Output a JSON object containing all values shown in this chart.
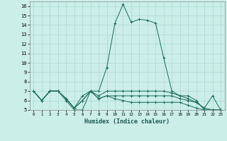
{
  "xlabel": "Humidex (Indice chaleur)",
  "background_color": "#cceee8",
  "grid_color": "#aad8d2",
  "line_color": "#1a6b5a",
  "x_data": [
    0,
    1,
    2,
    3,
    4,
    5,
    6,
    7,
    8,
    9,
    10,
    11,
    12,
    13,
    14,
    15,
    16,
    17,
    18,
    19,
    20,
    21,
    22,
    23
  ],
  "lines": [
    [
      7,
      6,
      7,
      7,
      6,
      5,
      5,
      7,
      7,
      9.5,
      14.2,
      16.2,
      14.3,
      14.6,
      14.5,
      14.2,
      10.5,
      7,
      6.5,
      6.5,
      6,
      5,
      5,
      5
    ],
    [
      7,
      6,
      7,
      7,
      6.2,
      5.2,
      6.5,
      7,
      6.5,
      7,
      7,
      7,
      7,
      7,
      7,
      7,
      7,
      6.8,
      6.5,
      6.2,
      5.8,
      5.2,
      5,
      5
    ],
    [
      7,
      6,
      7,
      7,
      6.2,
      5.2,
      6,
      7,
      6.2,
      6.5,
      6.5,
      6.5,
      6.5,
      6.5,
      6.5,
      6.5,
      6.5,
      6.5,
      6.2,
      6,
      5.8,
      5.2,
      6.5,
      5
    ],
    [
      7,
      6,
      7,
      7,
      6.2,
      5.2,
      6,
      7,
      6.2,
      6.5,
      6.2,
      6,
      5.8,
      5.8,
      5.8,
      5.8,
      5.8,
      5.8,
      5.8,
      5.5,
      5.2,
      5,
      5,
      5
    ]
  ],
  "ylim": [
    5,
    16.5
  ],
  "yticks": [
    5,
    6,
    7,
    8,
    9,
    10,
    11,
    12,
    13,
    14,
    15,
    16
  ],
  "xlim": [
    -0.5,
    23.5
  ],
  "xticks": [
    0,
    1,
    2,
    3,
    4,
    5,
    6,
    7,
    8,
    9,
    10,
    11,
    12,
    13,
    14,
    15,
    16,
    17,
    18,
    19,
    20,
    21,
    22,
    23
  ]
}
